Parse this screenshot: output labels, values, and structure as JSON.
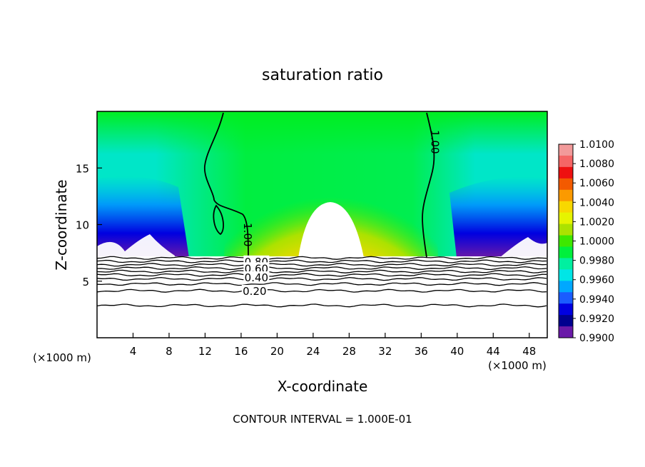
{
  "chart_data": {
    "type": "heatmap",
    "title": "saturation ratio",
    "xlabel": "X-coordinate",
    "ylabel": "Z-coordinate",
    "x_unit": "(×1000 m)",
    "xlim": [
      0,
      50
    ],
    "ylim": [
      0,
      20
    ],
    "x_ticks": [
      4,
      8,
      12,
      16,
      20,
      24,
      28,
      32,
      36,
      40,
      44,
      48
    ],
    "y_ticks": [
      5,
      10,
      15
    ],
    "footer": "CONTOUR INTERVAL = 1.000E-01",
    "colorbar": {
      "levels": [
        "1.0100",
        "1.0080",
        "1.0060",
        "1.0040",
        "1.0020",
        "1.0000",
        "0.9980",
        "0.9960",
        "0.9940",
        "0.9920",
        "0.9900"
      ],
      "colors": [
        "#f29a9a",
        "#f56565",
        "#ee1010",
        "#f35a00",
        "#fb9a00",
        "#f8d800",
        "#e6f400",
        "#ace200",
        "#3ee800",
        "#00f03c",
        "#00f0a0",
        "#00e6e6",
        "#00a8ff",
        "#1a5cff",
        "#0000e0",
        "#00008f",
        "#6a1aa8"
      ]
    },
    "contour_labels": [
      {
        "text": "1.00",
        "x": 16.7,
        "z": 9.1,
        "rotate": 90
      },
      {
        "text": "1.00",
        "x": 37.5,
        "z": 17.3,
        "rotate": 90
      },
      {
        "text": "0.80",
        "x": 17.7,
        "z": 6.7,
        "rotate": 0
      },
      {
        "text": "0.60",
        "x": 17.7,
        "z": 6.1,
        "rotate": 0
      },
      {
        "text": "0.40",
        "x": 17.7,
        "z": 5.3,
        "rotate": 0
      },
      {
        "text": "0.20",
        "x": 17.5,
        "z": 4.1,
        "rotate": 0
      }
    ],
    "contour_levels": [
      {
        "level": 1.0,
        "z": 7.05
      },
      {
        "level": 0.9,
        "z": 6.75
      },
      {
        "level": 0.8,
        "z": 6.45
      },
      {
        "level": 0.7,
        "z": 6.15
      },
      {
        "level": 0.6,
        "z": 5.85
      },
      {
        "level": 0.5,
        "z": 5.55
      },
      {
        "level": 0.4,
        "z": 5.2
      },
      {
        "level": 0.3,
        "z": 4.75
      },
      {
        "level": 0.2,
        "z": 4.15
      },
      {
        "level": 0.1,
        "z": 2.85
      }
    ]
  }
}
